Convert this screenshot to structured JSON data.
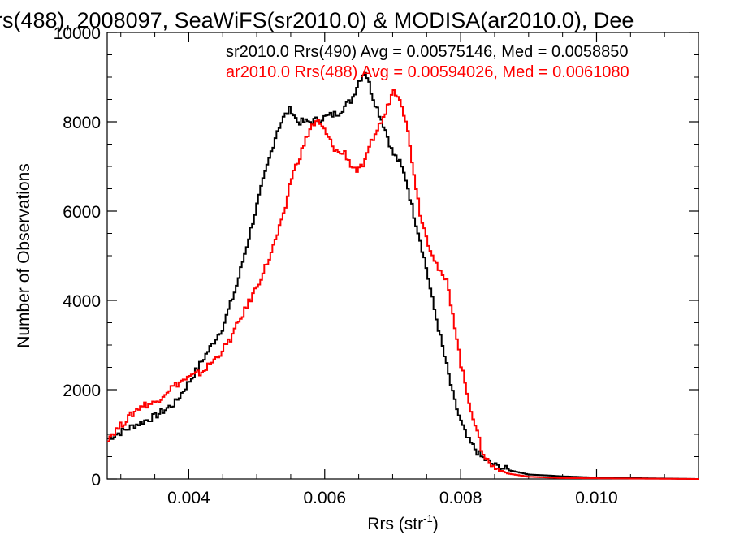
{
  "chart_data": {
    "type": "line",
    "title": "rs(488), 2008097, SeaWiFS(sr2010.0) & MODISA(ar2010.0), Dee",
    "xlabel": "Rrs (str",
    "xlabel_sup": "-1",
    "xlabel_close": ")",
    "ylabel": "Number of Observations",
    "xlim": [
      0.0028,
      0.0115
    ],
    "ylim": [
      0,
      10000
    ],
    "x_ticks": [
      0.004,
      0.006,
      0.008,
      0.01
    ],
    "x_tick_labels": [
      "0.004",
      "0.006",
      "0.008",
      "0.010"
    ],
    "y_ticks": [
      0,
      2000,
      4000,
      6000,
      8000,
      10000
    ],
    "y_tick_labels": [
      "0",
      "2000",
      "4000",
      "6000",
      "8000",
      "10000"
    ],
    "grid": false,
    "legend_position": "top-right",
    "series": [
      {
        "name": "sr2010.0 Rrs(490) Avg = 0.00575146, Med = 0.0058850",
        "color": "#000000",
        "points": [
          [
            0.0028,
            900
          ],
          [
            0.0032,
            1200
          ],
          [
            0.0035,
            1400
          ],
          [
            0.0038,
            1700
          ],
          [
            0.0041,
            2400
          ],
          [
            0.0043,
            2900
          ],
          [
            0.0045,
            3400
          ],
          [
            0.0047,
            4300
          ],
          [
            0.0049,
            5500
          ],
          [
            0.0051,
            6700
          ],
          [
            0.0053,
            7800
          ],
          [
            0.0054,
            8100
          ],
          [
            0.0055,
            8300
          ],
          [
            0.0056,
            8000
          ],
          [
            0.0058,
            8000
          ],
          [
            0.006,
            8100
          ],
          [
            0.0062,
            8200
          ],
          [
            0.0064,
            8500
          ],
          [
            0.0065,
            8900
          ],
          [
            0.0066,
            9150
          ],
          [
            0.0067,
            8600
          ],
          [
            0.0068,
            8200
          ],
          [
            0.0069,
            7800
          ],
          [
            0.007,
            7300
          ],
          [
            0.0071,
            7100
          ],
          [
            0.0072,
            6700
          ],
          [
            0.0073,
            6000
          ],
          [
            0.0074,
            5400
          ],
          [
            0.0075,
            4700
          ],
          [
            0.0076,
            3900
          ],
          [
            0.0077,
            3200
          ],
          [
            0.0078,
            2500
          ],
          [
            0.0079,
            1800
          ],
          [
            0.008,
            1300
          ],
          [
            0.0081,
            900
          ],
          [
            0.0082,
            700
          ],
          [
            0.0083,
            500
          ],
          [
            0.0085,
            300
          ],
          [
            0.0087,
            200
          ],
          [
            0.009,
            100
          ],
          [
            0.0095,
            60
          ],
          [
            0.01,
            30
          ],
          [
            0.0115,
            0
          ]
        ]
      },
      {
        "name": "ar2010.0 Rrs(488) Avg = 0.00594026, Med = 0.0061080",
        "color": "#ff0000",
        "points": [
          [
            0.0028,
            900
          ],
          [
            0.003,
            1200
          ],
          [
            0.0032,
            1500
          ],
          [
            0.0033,
            1650
          ],
          [
            0.0035,
            1700
          ],
          [
            0.0037,
            2000
          ],
          [
            0.0039,
            2200
          ],
          [
            0.0042,
            2400
          ],
          [
            0.0044,
            2700
          ],
          [
            0.0046,
            3100
          ],
          [
            0.0048,
            3700
          ],
          [
            0.005,
            4300
          ],
          [
            0.0052,
            5000
          ],
          [
            0.0054,
            5900
          ],
          [
            0.0055,
            6700
          ],
          [
            0.0057,
            7500
          ],
          [
            0.0058,
            7900
          ],
          [
            0.0059,
            8000
          ],
          [
            0.006,
            7800
          ],
          [
            0.0061,
            7500
          ],
          [
            0.0062,
            7300
          ],
          [
            0.0063,
            7300
          ],
          [
            0.0064,
            7000
          ],
          [
            0.0065,
            6900
          ],
          [
            0.0066,
            7100
          ],
          [
            0.0067,
            7600
          ],
          [
            0.0068,
            7900
          ],
          [
            0.0069,
            8200
          ],
          [
            0.007,
            8700
          ],
          [
            0.0071,
            8600
          ],
          [
            0.0072,
            8000
          ],
          [
            0.0073,
            7000
          ],
          [
            0.0074,
            6000
          ],
          [
            0.0075,
            5400
          ],
          [
            0.0076,
            5000
          ],
          [
            0.0077,
            4600
          ],
          [
            0.0078,
            4400
          ],
          [
            0.0079,
            3600
          ],
          [
            0.008,
            2600
          ],
          [
            0.0081,
            1900
          ],
          [
            0.0082,
            1300
          ],
          [
            0.0083,
            700
          ],
          [
            0.0084,
            400
          ],
          [
            0.0085,
            250
          ],
          [
            0.0087,
            120
          ],
          [
            0.009,
            50
          ],
          [
            0.0095,
            20
          ],
          [
            0.0115,
            0
          ]
        ]
      }
    ]
  }
}
